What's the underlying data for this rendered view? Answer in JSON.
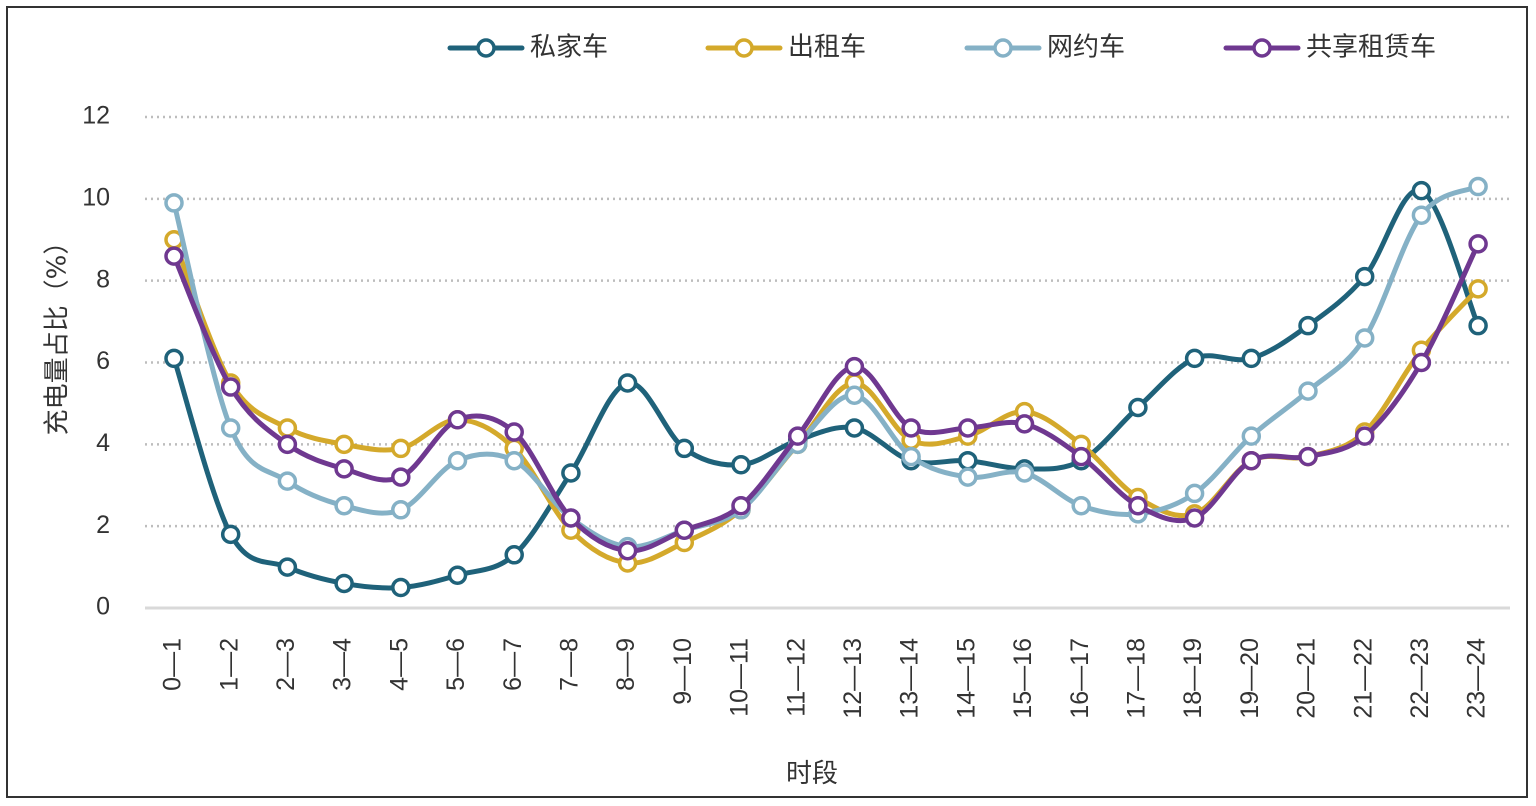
{
  "chart_data": {
    "type": "line",
    "title": "",
    "xlabel": "时段",
    "ylabel": "充电量占比（%）",
    "ylim": [
      0,
      12
    ],
    "yticks": [
      0,
      2,
      4,
      6,
      8,
      10,
      12
    ],
    "grid": "horizontal dotted",
    "legend_position": "top",
    "categories": [
      "0—1",
      "1—2",
      "2—3",
      "3—4",
      "4—5",
      "5—6",
      "6—7",
      "7—8",
      "8—9",
      "9—10",
      "10—11",
      "11—12",
      "12—13",
      "13—14",
      "14—15",
      "15—16",
      "16—17",
      "17—18",
      "18—19",
      "19—20",
      "20—21",
      "21—22",
      "22—23",
      "23—24"
    ],
    "series": [
      {
        "name": "私家车",
        "color": "#1f627a",
        "values": [
          6.1,
          1.8,
          1.0,
          0.6,
          0.5,
          0.8,
          1.3,
          3.3,
          5.5,
          3.9,
          3.5,
          4.1,
          4.4,
          3.6,
          3.6,
          3.4,
          3.6,
          4.9,
          6.1,
          6.1,
          6.9,
          8.1,
          10.2,
          6.9
        ]
      },
      {
        "name": "出租车",
        "color": "#d4a92b",
        "values": [
          9.0,
          5.5,
          4.4,
          4.0,
          3.9,
          4.6,
          3.9,
          1.9,
          1.1,
          1.6,
          2.4,
          4.0,
          5.5,
          4.1,
          4.2,
          4.8,
          4.0,
          2.7,
          2.3,
          3.6,
          3.7,
          4.3,
          6.3,
          7.8
        ]
      },
      {
        "name": "网约车",
        "color": "#85b1c6",
        "values": [
          9.9,
          4.4,
          3.1,
          2.5,
          2.4,
          3.6,
          3.6,
          2.2,
          1.5,
          1.9,
          2.4,
          4.0,
          5.2,
          3.7,
          3.2,
          3.3,
          2.5,
          2.3,
          2.8,
          4.2,
          5.3,
          6.6,
          9.6,
          10.3
        ]
      },
      {
        "name": "共享租赁车",
        "color": "#6f3890",
        "values": [
          8.6,
          5.4,
          4.0,
          3.4,
          3.2,
          4.6,
          4.3,
          2.2,
          1.4,
          1.9,
          2.5,
          4.2,
          5.9,
          4.4,
          4.4,
          4.5,
          3.7,
          2.5,
          2.2,
          3.6,
          3.7,
          4.2,
          6.0,
          8.9
        ]
      }
    ]
  }
}
